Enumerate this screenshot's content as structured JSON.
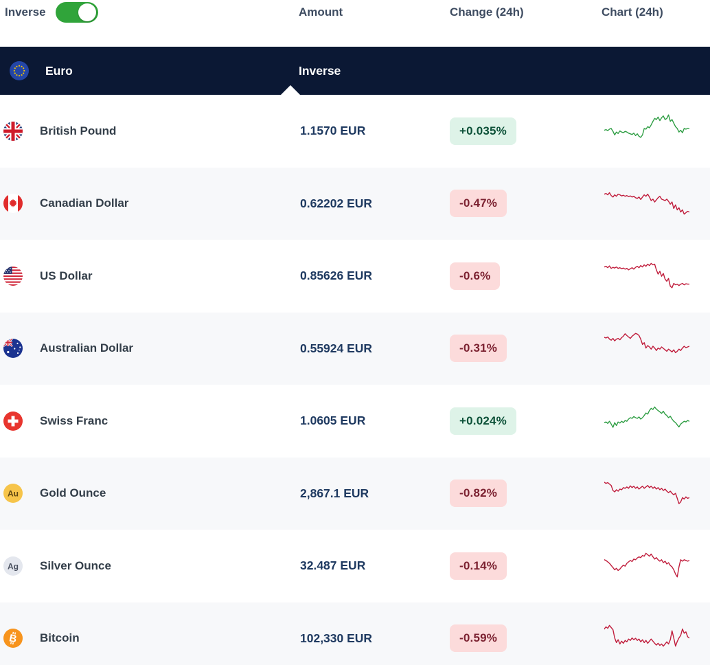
{
  "toolbar": {
    "inverse_label": "Inverse",
    "inverse_on": true
  },
  "columns": {
    "amount": "Amount",
    "change": "Change (24h)",
    "chart": "Chart (24h)"
  },
  "base_row": {
    "currency": "Euro",
    "amount_label": "Inverse"
  },
  "colors": {
    "header_navy": "#0b1834",
    "toggle_green": "#30a43a",
    "up_line": "#2f9e44",
    "down_line": "#c01d3c",
    "up_badge_bg": "#def3e8",
    "up_badge_text": "#0c5138",
    "down_badge_bg": "#fcdbdb",
    "down_badge_text": "#7c2231"
  },
  "rows": [
    {
      "name": "British Pound",
      "amount": "1.1570 EUR",
      "change": "+0.035%",
      "direction": "up",
      "sparkline": [
        55,
        53,
        56,
        52,
        50,
        58,
        68,
        60,
        64,
        57,
        60,
        62,
        58,
        60,
        63,
        65,
        67,
        63,
        70,
        65,
        72,
        75,
        68,
        50,
        52,
        45,
        48,
        40,
        30,
        22,
        25,
        18,
        28,
        20,
        15,
        25,
        22,
        12,
        30,
        25,
        35,
        45,
        50,
        60,
        55,
        62,
        50,
        52,
        50,
        51
      ]
    },
    {
      "name": "Canadian Dollar",
      "amount": "0.62202 EUR",
      "change": "-0.47%",
      "direction": "down",
      "sparkline": [
        30,
        28,
        32,
        26,
        34,
        38,
        32,
        36,
        30,
        32,
        35,
        33,
        36,
        34,
        37,
        35,
        38,
        36,
        40,
        42,
        38,
        45,
        38,
        32,
        36,
        30,
        38,
        48,
        44,
        52,
        46,
        40,
        36,
        44,
        46,
        48,
        44,
        50,
        58,
        52,
        70,
        60,
        74,
        68,
        80,
        74,
        86,
        82,
        78,
        80
      ]
    },
    {
      "name": "US Dollar",
      "amount": "0.85626 EUR",
      "change": "-0.6%",
      "direction": "down",
      "sparkline": [
        32,
        30,
        34,
        29,
        36,
        33,
        35,
        32,
        36,
        34,
        37,
        35,
        38,
        36,
        40,
        37,
        34,
        38,
        33,
        30,
        34,
        28,
        32,
        26,
        30,
        24,
        28,
        22,
        26,
        24,
        40,
        52,
        44,
        58,
        50,
        66,
        72,
        64,
        86,
        90,
        78,
        82,
        80,
        84,
        80,
        78,
        82,
        79,
        80,
        80
      ]
    },
    {
      "name": "Australian Dollar",
      "amount": "0.55924 EUR",
      "change": "-0.31%",
      "direction": "down",
      "sparkline": [
        25,
        27,
        24,
        30,
        33,
        28,
        35,
        30,
        28,
        32,
        26,
        22,
        15,
        20,
        24,
        28,
        22,
        18,
        14,
        16,
        20,
        30,
        45,
        40,
        55,
        48,
        52,
        58,
        50,
        55,
        62,
        55,
        58,
        52,
        56,
        60,
        64,
        58,
        62,
        66,
        60,
        68,
        64,
        58,
        62,
        55,
        50,
        54,
        52,
        50
      ]
    },
    {
      "name": "Swiss Franc",
      "amount": "1.0605 EUR",
      "change": "+0.024%",
      "direction": "up",
      "sparkline": [
        62,
        60,
        64,
        58,
        66,
        75,
        62,
        70,
        60,
        63,
        58,
        62,
        56,
        58,
        52,
        48,
        50,
        45,
        48,
        50,
        46,
        52,
        48,
        42,
        35,
        38,
        28,
        22,
        25,
        18,
        24,
        28,
        32,
        36,
        30,
        38,
        42,
        48,
        44,
        52,
        58,
        62,
        68,
        74,
        66,
        62,
        58,
        60,
        56,
        58
      ]
    },
    {
      "name": "Gold Ounce",
      "amount": "2,867.1 EUR",
      "change": "-0.82%",
      "direction": "down",
      "sparkline": [
        25,
        28,
        26,
        30,
        34,
        48,
        52,
        46,
        50,
        44,
        46,
        40,
        42,
        38,
        42,
        35,
        40,
        36,
        42,
        38,
        44,
        40,
        36,
        42,
        38,
        34,
        40,
        36,
        42,
        38,
        44,
        40,
        46,
        42,
        48,
        44,
        50,
        54,
        50,
        56,
        60,
        56,
        70,
        85,
        80,
        68,
        72,
        66,
        70,
        68
      ]
    },
    {
      "name": "Silver Ounce",
      "amount": "32.487 EUR",
      "change": "-0.14%",
      "direction": "down",
      "sparkline": [
        40,
        42,
        46,
        50,
        56,
        62,
        68,
        64,
        70,
        66,
        60,
        55,
        58,
        50,
        46,
        42,
        45,
        38,
        40,
        35,
        32,
        34,
        28,
        30,
        22,
        26,
        30,
        24,
        32,
        38,
        34,
        40,
        44,
        40,
        48,
        44,
        52,
        48,
        56,
        60,
        68,
        80,
        88,
        60,
        40,
        44,
        40,
        42,
        44,
        42
      ]
    },
    {
      "name": "Bitcoin",
      "amount": "102,330 EUR",
      "change": "-0.59%",
      "direction": "down",
      "sparkline": [
        30,
        24,
        28,
        20,
        26,
        32,
        55,
        68,
        60,
        72,
        64,
        70,
        62,
        66,
        58,
        62,
        55,
        60,
        56,
        62,
        58,
        66,
        60,
        68,
        62,
        70,
        64,
        58,
        64,
        70,
        75,
        70,
        76,
        72,
        78,
        72,
        66,
        72,
        60,
        35,
        55,
        78,
        65,
        55,
        48,
        30,
        42,
        38,
        52,
        55
      ]
    }
  ]
}
